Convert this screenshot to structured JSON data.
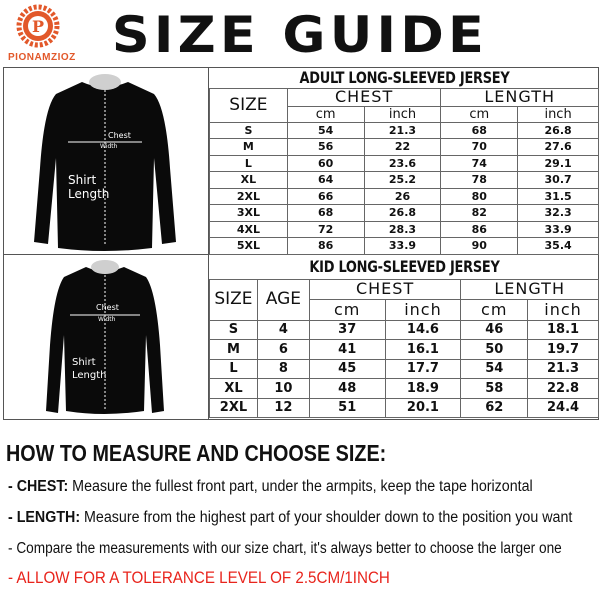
{
  "brand": {
    "name": "PIONAMZIOZ",
    "color": "#e2582a"
  },
  "title": "SIZE GUIDE",
  "diagram_labels": {
    "chest": "Chest",
    "width": "Width",
    "shirt": "Shirt",
    "length": "Length"
  },
  "adult": {
    "title": "ADULT LONG-SLEEVED JERSEY",
    "headers": {
      "size": "SIZE",
      "chest": "CHEST",
      "length": "LENGTH",
      "cm": "cm",
      "inch": "inch"
    },
    "rows": [
      [
        "S",
        "54",
        "21.3",
        "68",
        "26.8"
      ],
      [
        "M",
        "56",
        "22",
        "70",
        "27.6"
      ],
      [
        "L",
        "60",
        "23.6",
        "74",
        "29.1"
      ],
      [
        "XL",
        "64",
        "25.2",
        "78",
        "30.7"
      ],
      [
        "2XL",
        "66",
        "26",
        "80",
        "31.5"
      ],
      [
        "3XL",
        "68",
        "26.8",
        "82",
        "32.3"
      ],
      [
        "4XL",
        "72",
        "28.3",
        "86",
        "33.9"
      ],
      [
        "5XL",
        "86",
        "33.9",
        "90",
        "35.4"
      ]
    ]
  },
  "kid": {
    "title": "KID LONG-SLEEVED JERSEY",
    "headers": {
      "size": "SIZE",
      "age": "AGE",
      "chest": "CHEST",
      "length": "LENGTH",
      "cm": "cm",
      "inch": "inch"
    },
    "rows": [
      [
        "S",
        "4",
        "37",
        "14.6",
        "46",
        "18.1"
      ],
      [
        "M",
        "6",
        "41",
        "16.1",
        "50",
        "19.7"
      ],
      [
        "L",
        "8",
        "45",
        "17.7",
        "54",
        "21.3"
      ],
      [
        "XL",
        "10",
        "48",
        "18.9",
        "58",
        "22.8"
      ],
      [
        "2XL",
        "12",
        "51",
        "20.1",
        "62",
        "24.4"
      ]
    ]
  },
  "instructions": {
    "heading": "HOW TO MEASURE AND CHOOSE SIZE:",
    "chest_label": "- CHEST:",
    "chest_text": "Measure the fullest front part, under the armpits, keep the tape horizontal",
    "length_label": "- LENGTH:",
    "length_text": "Measure from the highest part of your shoulder down to the position you want",
    "compare": "- Compare the measurements with our size chart, it's always better to choose the larger one",
    "tolerance": "- ALLOW FOR A TOLERANCE LEVEL OF 2.5CM/1INCH",
    "tolerance_color": "#e8241c"
  }
}
